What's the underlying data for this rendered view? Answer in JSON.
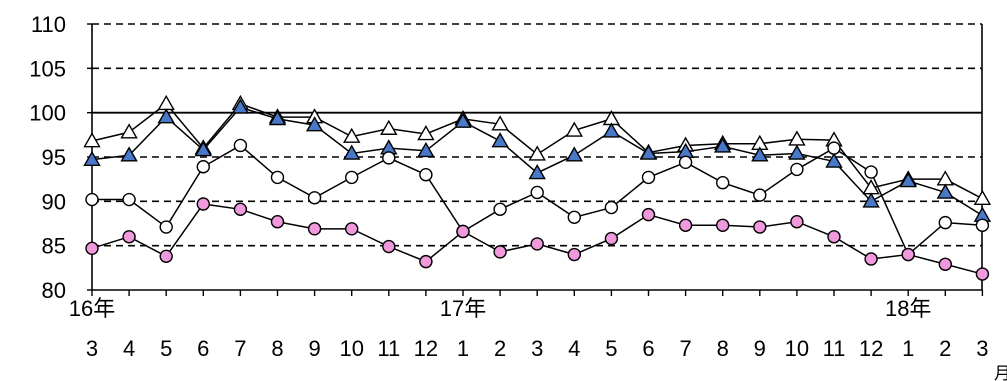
{
  "chart_data": {
    "type": "line",
    "title": "",
    "xlabel": "月",
    "ylabel": "",
    "ylim": [
      80,
      110
    ],
    "yticks": [
      "80",
      "85",
      "90",
      "95",
      "100",
      "105",
      "110"
    ],
    "grid": "dashed horizontal lines; solid reference line at 100",
    "reference_line": 100,
    "year_labels": [
      {
        "label": "16年",
        "at_index": 0
      },
      {
        "label": "17年",
        "at_index": 10
      },
      {
        "label": "18年",
        "at_index": 22
      }
    ],
    "categories": [
      "3",
      "4",
      "5",
      "6",
      "7",
      "8",
      "9",
      "10",
      "11",
      "12",
      "1",
      "2",
      "3",
      "4",
      "5",
      "6",
      "7",
      "8",
      "9",
      "10",
      "11",
      "12",
      "1",
      "2",
      "3"
    ],
    "series": [
      {
        "marker": "triangle-open",
        "color": "#ffffff",
        "values": [
          96.8,
          97.8,
          101.0,
          96.0,
          101.0,
          99.5,
          99.5,
          97.3,
          98.2,
          97.6,
          99.3,
          98.7,
          95.3,
          98.0,
          99.3,
          95.5,
          96.3,
          96.5,
          96.5,
          97.0,
          96.9,
          91.5,
          92.5,
          92.5,
          90.3
        ]
      },
      {
        "marker": "triangle-filled",
        "color": "#4a78c8",
        "values": [
          94.7,
          95.2,
          99.5,
          95.8,
          100.6,
          99.3,
          98.6,
          95.4,
          96.0,
          95.7,
          99.0,
          96.8,
          93.2,
          95.2,
          97.9,
          95.4,
          95.6,
          96.2,
          95.2,
          95.4,
          94.5,
          90.0,
          92.3,
          91.0,
          88.4
        ]
      },
      {
        "marker": "circle-open",
        "color": "#ffffff",
        "values": [
          90.2,
          90.2,
          87.1,
          93.9,
          96.3,
          92.7,
          90.4,
          92.7,
          94.9,
          93.0,
          86.6,
          89.1,
          91.0,
          88.2,
          89.3,
          92.7,
          94.4,
          92.1,
          90.7,
          93.6,
          96.0,
          93.3,
          84.0,
          87.6,
          87.3
        ]
      },
      {
        "marker": "circle-filled",
        "color": "#f099dd",
        "values": [
          84.7,
          86.0,
          83.8,
          89.7,
          89.1,
          87.7,
          86.9,
          86.9,
          84.9,
          83.2,
          86.6,
          84.3,
          85.2,
          84.0,
          85.8,
          88.5,
          87.3,
          87.3,
          87.1,
          87.7,
          86.0,
          83.5,
          84.0,
          82.9,
          81.8
        ]
      }
    ]
  }
}
